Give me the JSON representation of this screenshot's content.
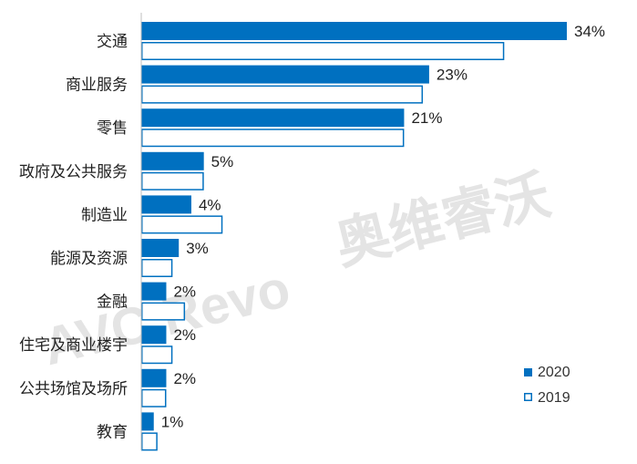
{
  "chart_data": {
    "type": "bar",
    "orientation": "horizontal",
    "categories": [
      "交通",
      "商业服务",
      "零售",
      "政府及公共服务",
      "制造业",
      "能源及资源",
      "金融",
      "住宅及商业楼宇",
      "公共场馆及场所",
      "教育"
    ],
    "series": [
      {
        "name": "2020",
        "values": [
          34,
          23,
          21,
          5,
          4,
          3,
          2,
          2,
          2,
          1
        ],
        "labels": [
          "34%",
          "23%",
          "21%",
          "5%",
          "4%",
          "3%",
          "2%",
          "2%",
          "2%",
          "1%"
        ],
        "color": "#0070c0",
        "style": "filled"
      },
      {
        "name": "2019",
        "values": [
          29,
          22.5,
          21,
          5,
          6.5,
          2.5,
          3.5,
          2.5,
          2,
          1.3
        ],
        "color": "#0070c0",
        "style": "outline"
      }
    ],
    "xlim": [
      0,
      40
    ],
    "grid": false,
    "legend_position": "bottom-right"
  },
  "watermark": {
    "latin": "AVC Revo",
    "chinese": "奥维睿沃"
  },
  "colors": {
    "accent": "#0070c0",
    "axis": "#bfbfbf",
    "text": "#222222"
  }
}
